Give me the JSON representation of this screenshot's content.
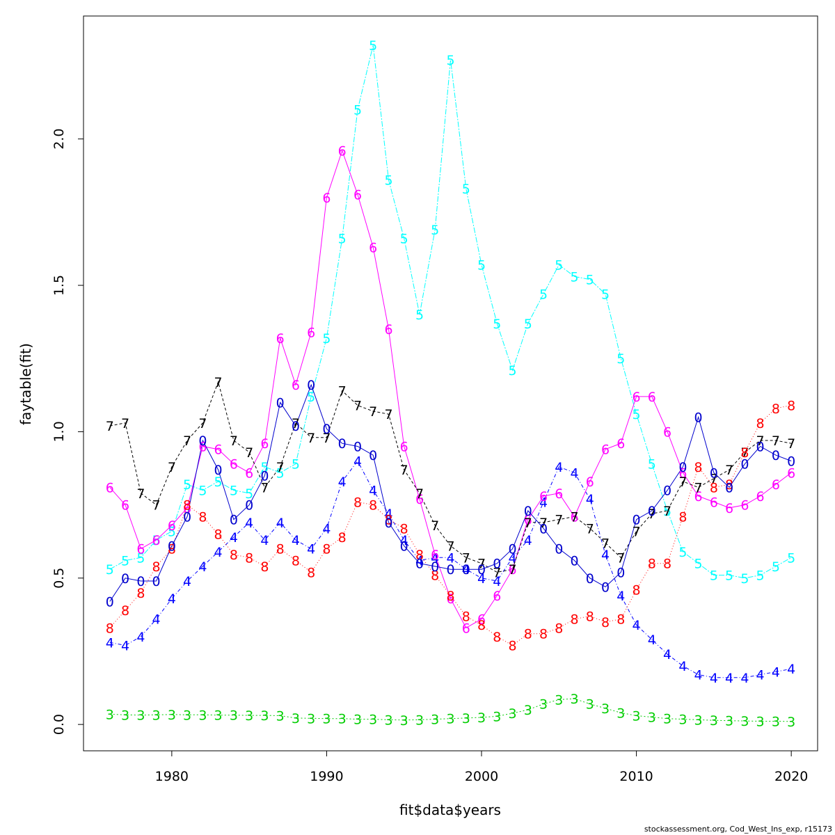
{
  "chart_data": {
    "type": "line",
    "title": "",
    "xlabel": "fit$data$years",
    "ylabel": "faytable(fit)",
    "xlim": [
      1974.3,
      2021.7
    ],
    "ylim": [
      -0.09,
      2.42
    ],
    "xticks": [
      1980,
      1990,
      2000,
      2010,
      2020
    ],
    "yticks": [
      0.0,
      0.5,
      1.0,
      1.5,
      2.0
    ],
    "ytick_labels": [
      "0.0",
      "0.5",
      "1.0",
      "1.5",
      "2.0"
    ],
    "x": [
      1976,
      1977,
      1978,
      1979,
      1980,
      1981,
      1982,
      1983,
      1984,
      1985,
      1986,
      1987,
      1988,
      1989,
      1990,
      1991,
      1992,
      1993,
      1994,
      1995,
      1996,
      1997,
      1998,
      1999,
      2000,
      2001,
      2002,
      2003,
      2004,
      2005,
      2006,
      2007,
      2008,
      2009,
      2010,
      2011,
      2012,
      2013,
      2014,
      2015,
      2016,
      2017,
      2018,
      2019,
      2020
    ],
    "series": [
      {
        "name": "3",
        "color": "#00cd00",
        "dash": "2,3",
        "values": [
          0.035,
          0.033,
          0.032,
          0.033,
          0.034,
          0.033,
          0.033,
          0.032,
          0.032,
          0.031,
          0.031,
          0.03,
          0.022,
          0.021,
          0.02,
          0.02,
          0.018,
          0.018,
          0.016,
          0.015,
          0.016,
          0.018,
          0.02,
          0.022,
          0.024,
          0.028,
          0.038,
          0.05,
          0.07,
          0.085,
          0.088,
          0.07,
          0.055,
          0.04,
          0.03,
          0.025,
          0.02,
          0.018,
          0.016,
          0.014,
          0.013,
          0.012,
          0.011,
          0.011,
          0.01
        ]
      },
      {
        "name": "4",
        "color": "#0000ff",
        "dash": "5,3,1,3",
        "values": [
          0.28,
          0.27,
          0.3,
          0.36,
          0.43,
          0.49,
          0.54,
          0.59,
          0.64,
          0.69,
          0.63,
          0.69,
          0.63,
          0.6,
          0.67,
          0.83,
          0.9,
          0.8,
          0.72,
          0.63,
          0.56,
          0.57,
          0.57,
          0.53,
          0.5,
          0.49,
          0.57,
          0.63,
          0.76,
          0.88,
          0.86,
          0.77,
          0.58,
          0.44,
          0.34,
          0.29,
          0.24,
          0.2,
          0.17,
          0.16,
          0.16,
          0.16,
          0.17,
          0.18,
          0.19
        ]
      },
      {
        "name": "5",
        "color": "#00ffff",
        "dash": "8,2,2,2",
        "values": [
          0.53,
          0.56,
          0.57,
          0.63,
          0.66,
          0.82,
          0.8,
          0.83,
          0.8,
          0.79,
          0.88,
          0.86,
          0.89,
          1.12,
          1.32,
          1.66,
          2.1,
          2.32,
          1.86,
          1.66,
          1.4,
          1.69,
          2.27,
          1.83,
          1.57,
          1.37,
          1.21,
          1.37,
          1.47,
          1.57,
          1.53,
          1.52,
          1.47,
          1.25,
          1.06,
          0.89,
          0.73,
          0.59,
          0.55,
          0.51,
          0.51,
          0.5,
          0.51,
          0.54,
          0.57
        ]
      },
      {
        "name": "6",
        "color": "#ff00ff",
        "dash": "",
        "values": [
          0.81,
          0.75,
          0.6,
          0.63,
          0.68,
          0.74,
          0.95,
          0.94,
          0.89,
          0.86,
          0.96,
          1.32,
          1.16,
          1.34,
          1.8,
          1.96,
          1.81,
          1.63,
          1.35,
          0.95,
          0.77,
          0.58,
          0.43,
          0.33,
          0.36,
          0.44,
          0.53,
          0.7,
          0.78,
          0.79,
          0.71,
          0.83,
          0.94,
          0.96,
          1.12,
          1.12,
          1.0,
          0.86,
          0.78,
          0.76,
          0.74,
          0.75,
          0.78,
          0.82,
          0.86
        ]
      },
      {
        "name": "7",
        "color": "#000000",
        "dash": "4,3",
        "values": [
          1.02,
          1.03,
          0.79,
          0.75,
          0.88,
          0.97,
          1.03,
          1.17,
          0.97,
          0.93,
          0.81,
          0.88,
          1.03,
          0.98,
          0.98,
          1.14,
          1.09,
          1.07,
          1.06,
          0.87,
          0.79,
          0.68,
          0.61,
          0.57,
          0.55,
          0.52,
          0.53,
          0.69,
          0.69,
          0.7,
          0.71,
          0.67,
          0.62,
          0.57,
          0.66,
          0.72,
          0.73,
          0.83,
          0.81,
          0.84,
          0.87,
          0.93,
          0.97,
          0.97,
          0.96
        ]
      },
      {
        "name": "8",
        "color": "#ff0000",
        "dash": "1,3",
        "values": [
          0.33,
          0.39,
          0.45,
          0.54,
          0.6,
          0.75,
          0.71,
          0.65,
          0.58,
          0.57,
          0.54,
          0.6,
          0.56,
          0.52,
          0.6,
          0.64,
          0.76,
          0.75,
          0.7,
          0.67,
          0.58,
          0.51,
          0.44,
          0.37,
          0.34,
          0.3,
          0.27,
          0.31,
          0.31,
          0.33,
          0.36,
          0.37,
          0.35,
          0.36,
          0.46,
          0.55,
          0.55,
          0.71,
          0.88,
          0.81,
          0.82,
          0.93,
          1.03,
          1.08,
          1.09
        ]
      },
      {
        "name": "0",
        "color": "#0000cd",
        "dash": "",
        "values": [
          0.42,
          0.5,
          0.49,
          0.49,
          0.61,
          0.71,
          0.97,
          0.87,
          0.7,
          0.75,
          0.85,
          1.1,
          1.02,
          1.16,
          1.01,
          0.96,
          0.95,
          0.92,
          0.69,
          0.61,
          0.55,
          0.54,
          0.53,
          0.53,
          0.53,
          0.55,
          0.6,
          0.73,
          0.67,
          0.6,
          0.56,
          0.5,
          0.47,
          0.52,
          0.7,
          0.73,
          0.8,
          0.88,
          1.05,
          0.86,
          0.81,
          0.89,
          0.95,
          0.92,
          0.9
        ]
      }
    ]
  },
  "footer": "stockassessment.org, Cod_West_Ins_exp, r15173"
}
